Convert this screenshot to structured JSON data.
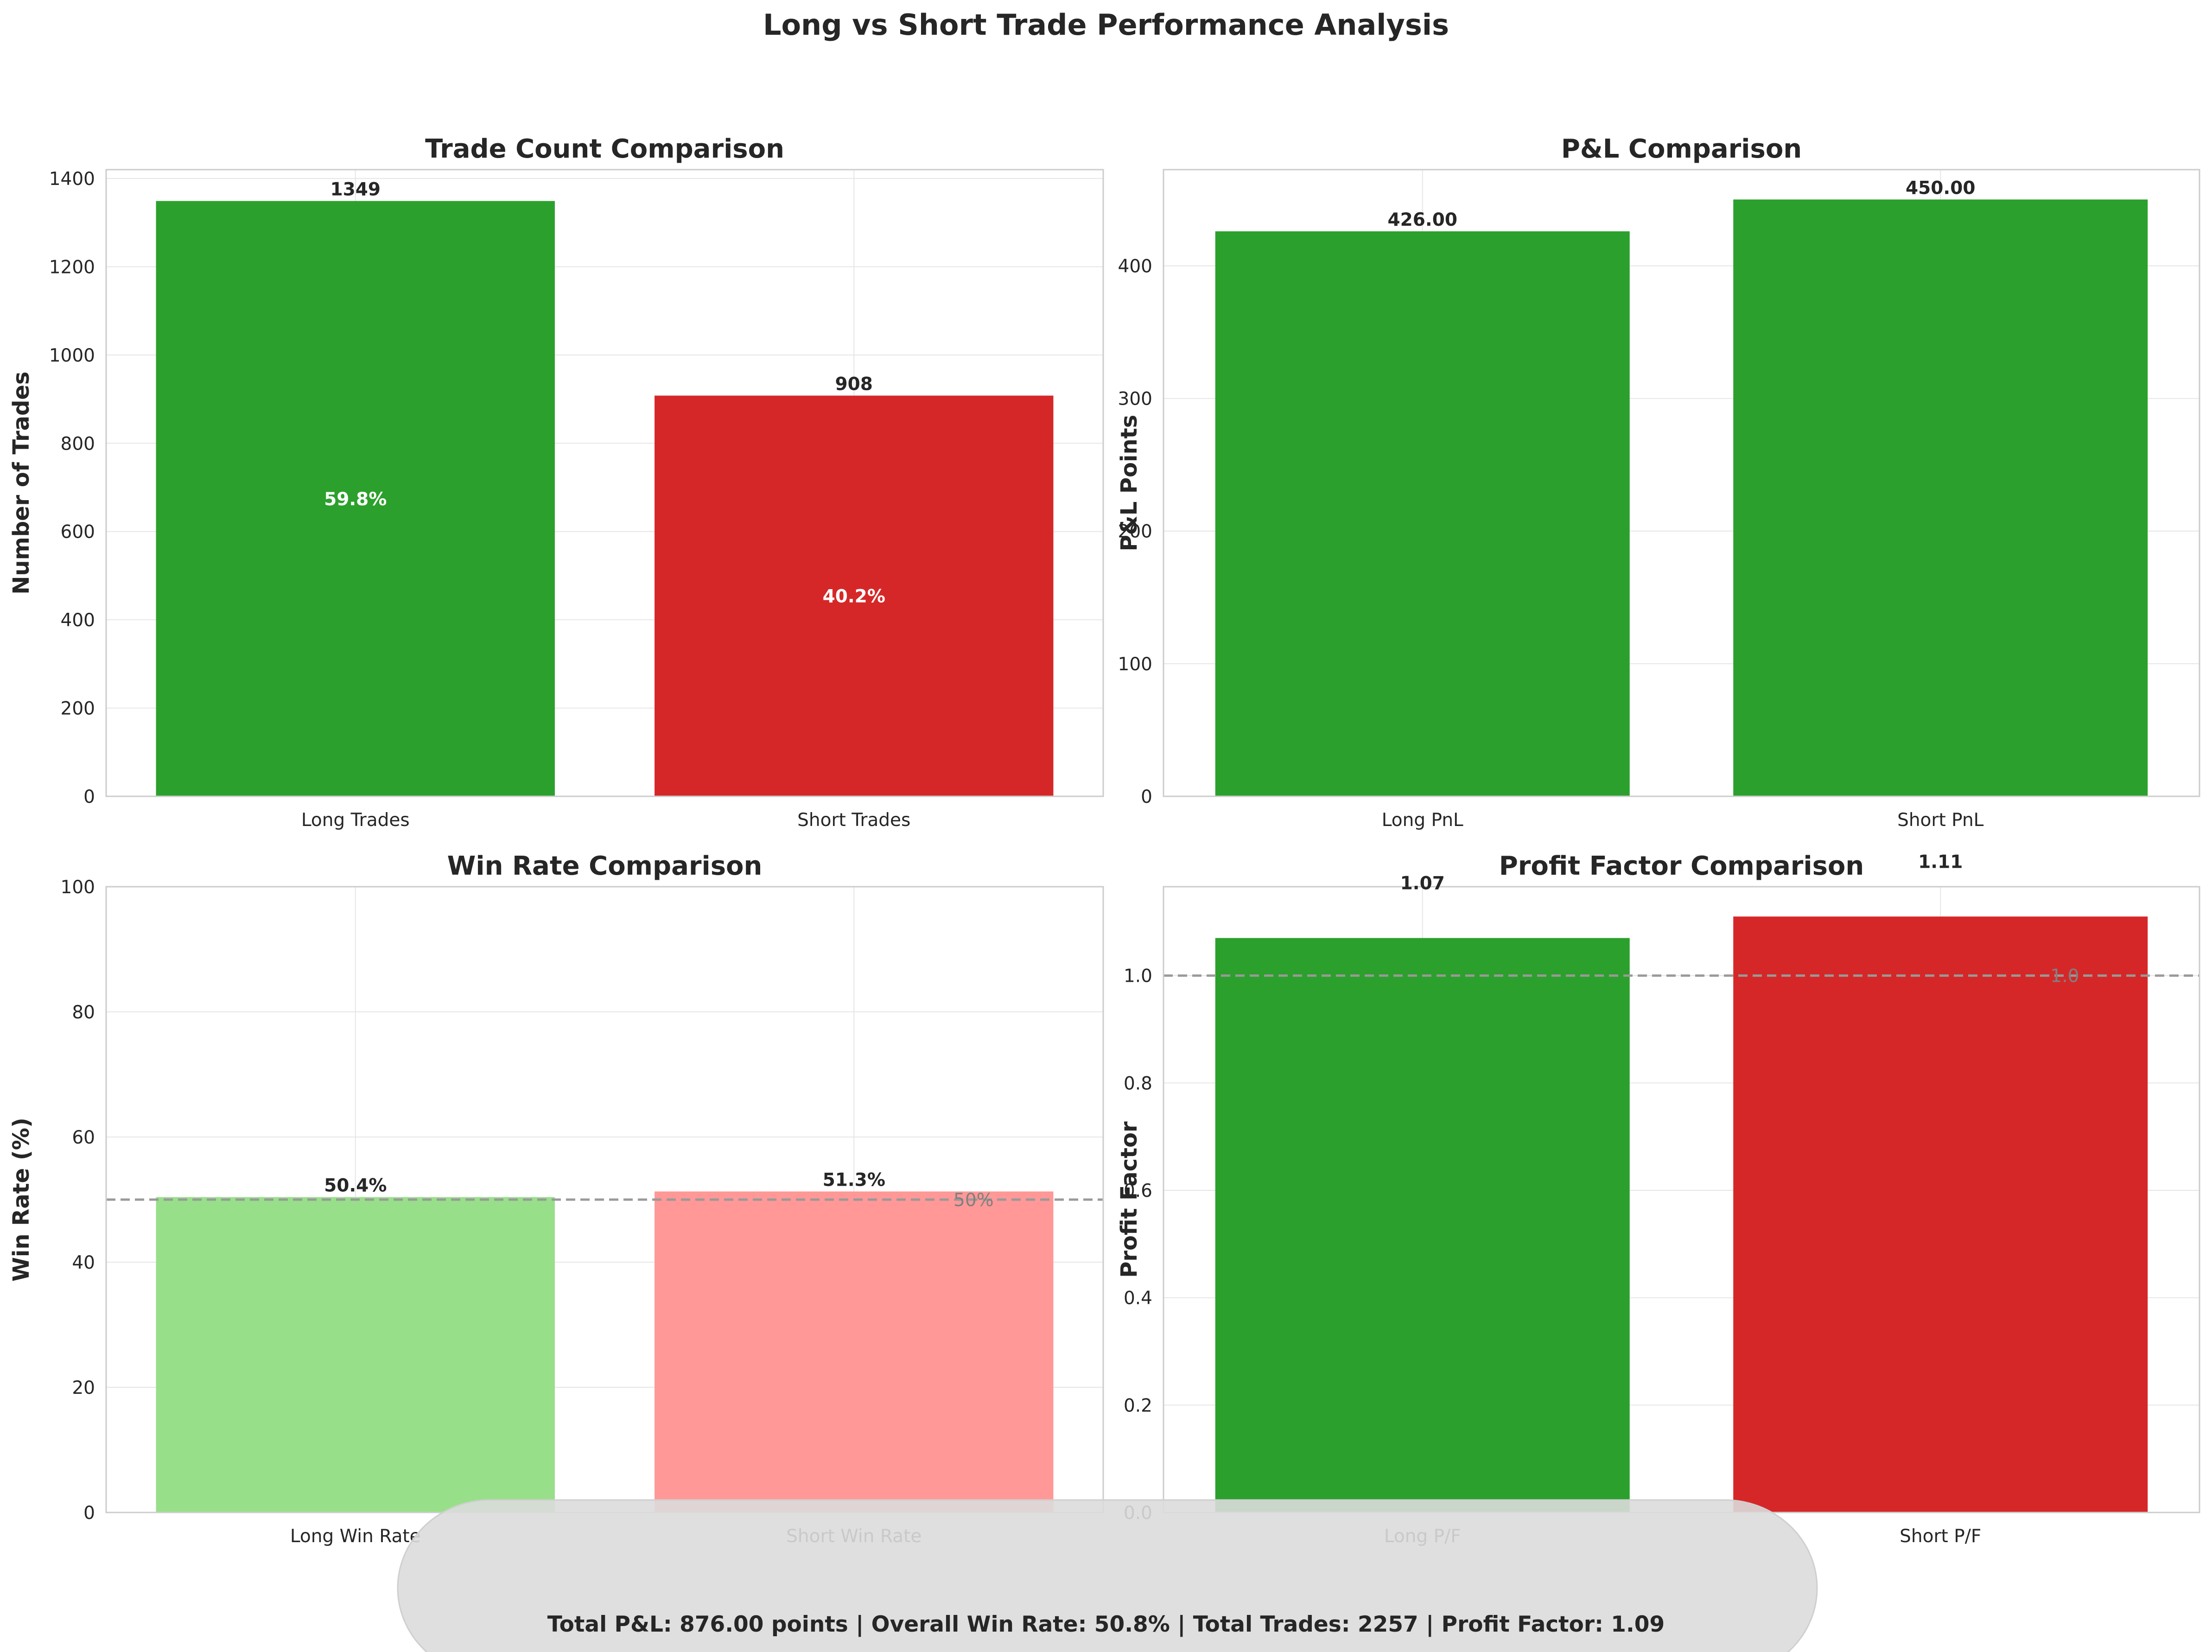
{
  "figure": {
    "title": "Long vs Short Trade Performance Analysis",
    "summary": "Total P&L: 876.00 points | Overall Win Rate: 50.8% | Total Trades: 2257 | Profit Factor: 1.09"
  },
  "chart_data": [
    {
      "type": "bar",
      "title": "Trade Count Comparison",
      "xlabel": "",
      "ylabel": "Number of Trades",
      "categories": [
        "Long Trades",
        "Short Trades"
      ],
      "values": [
        1349,
        908
      ],
      "value_labels": [
        "1349",
        "908"
      ],
      "inner_labels": [
        "59.8%",
        "40.2%"
      ],
      "colors": [
        "#2ca02c",
        "#d62728"
      ],
      "ylim": [
        0,
        1420
      ],
      "yticks": [
        0,
        200,
        400,
        600,
        800,
        1000,
        1200,
        1400
      ],
      "grid": true
    },
    {
      "type": "bar",
      "title": "P&L Comparison",
      "xlabel": "",
      "ylabel": "P&L Points",
      "categories": [
        "Long PnL",
        "Short PnL"
      ],
      "values": [
        426.0,
        450.0
      ],
      "value_labels": [
        "426.00",
        "450.00"
      ],
      "colors": [
        "#2ca02c",
        "#2ca02c"
      ],
      "ylim": [
        0,
        472.5
      ],
      "yticks": [
        0,
        100,
        200,
        300,
        400
      ],
      "grid": true
    },
    {
      "type": "bar",
      "title": "Win Rate Comparison",
      "xlabel": "",
      "ylabel": "Win Rate (%)",
      "categories": [
        "Long Win Rate",
        "Short Win Rate"
      ],
      "values": [
        50.4,
        51.3
      ],
      "value_labels": [
        "50.4%",
        "51.3%"
      ],
      "colors": [
        "#98df8a",
        "#ff9896"
      ],
      "ylim": [
        0,
        100
      ],
      "yticks": [
        0,
        20,
        40,
        60,
        80,
        100
      ],
      "reference_line": {
        "value": 50,
        "label": "50%"
      },
      "grid": true
    },
    {
      "type": "bar",
      "title": "Profit Factor Comparison",
      "xlabel": "",
      "ylabel": "Profit Factor",
      "categories": [
        "Long P/F",
        "Short P/F"
      ],
      "values": [
        1.07,
        1.11
      ],
      "value_labels": [
        "1.07",
        "1.11"
      ],
      "colors": [
        "#2ca02c",
        "#d62728"
      ],
      "ylim": [
        0,
        1.1655
      ],
      "yticks": [
        0.0,
        0.2,
        0.4,
        0.6,
        0.8,
        1.0
      ],
      "reference_line": {
        "value": 1.0,
        "label": "1.0"
      },
      "grid": true
    }
  ]
}
